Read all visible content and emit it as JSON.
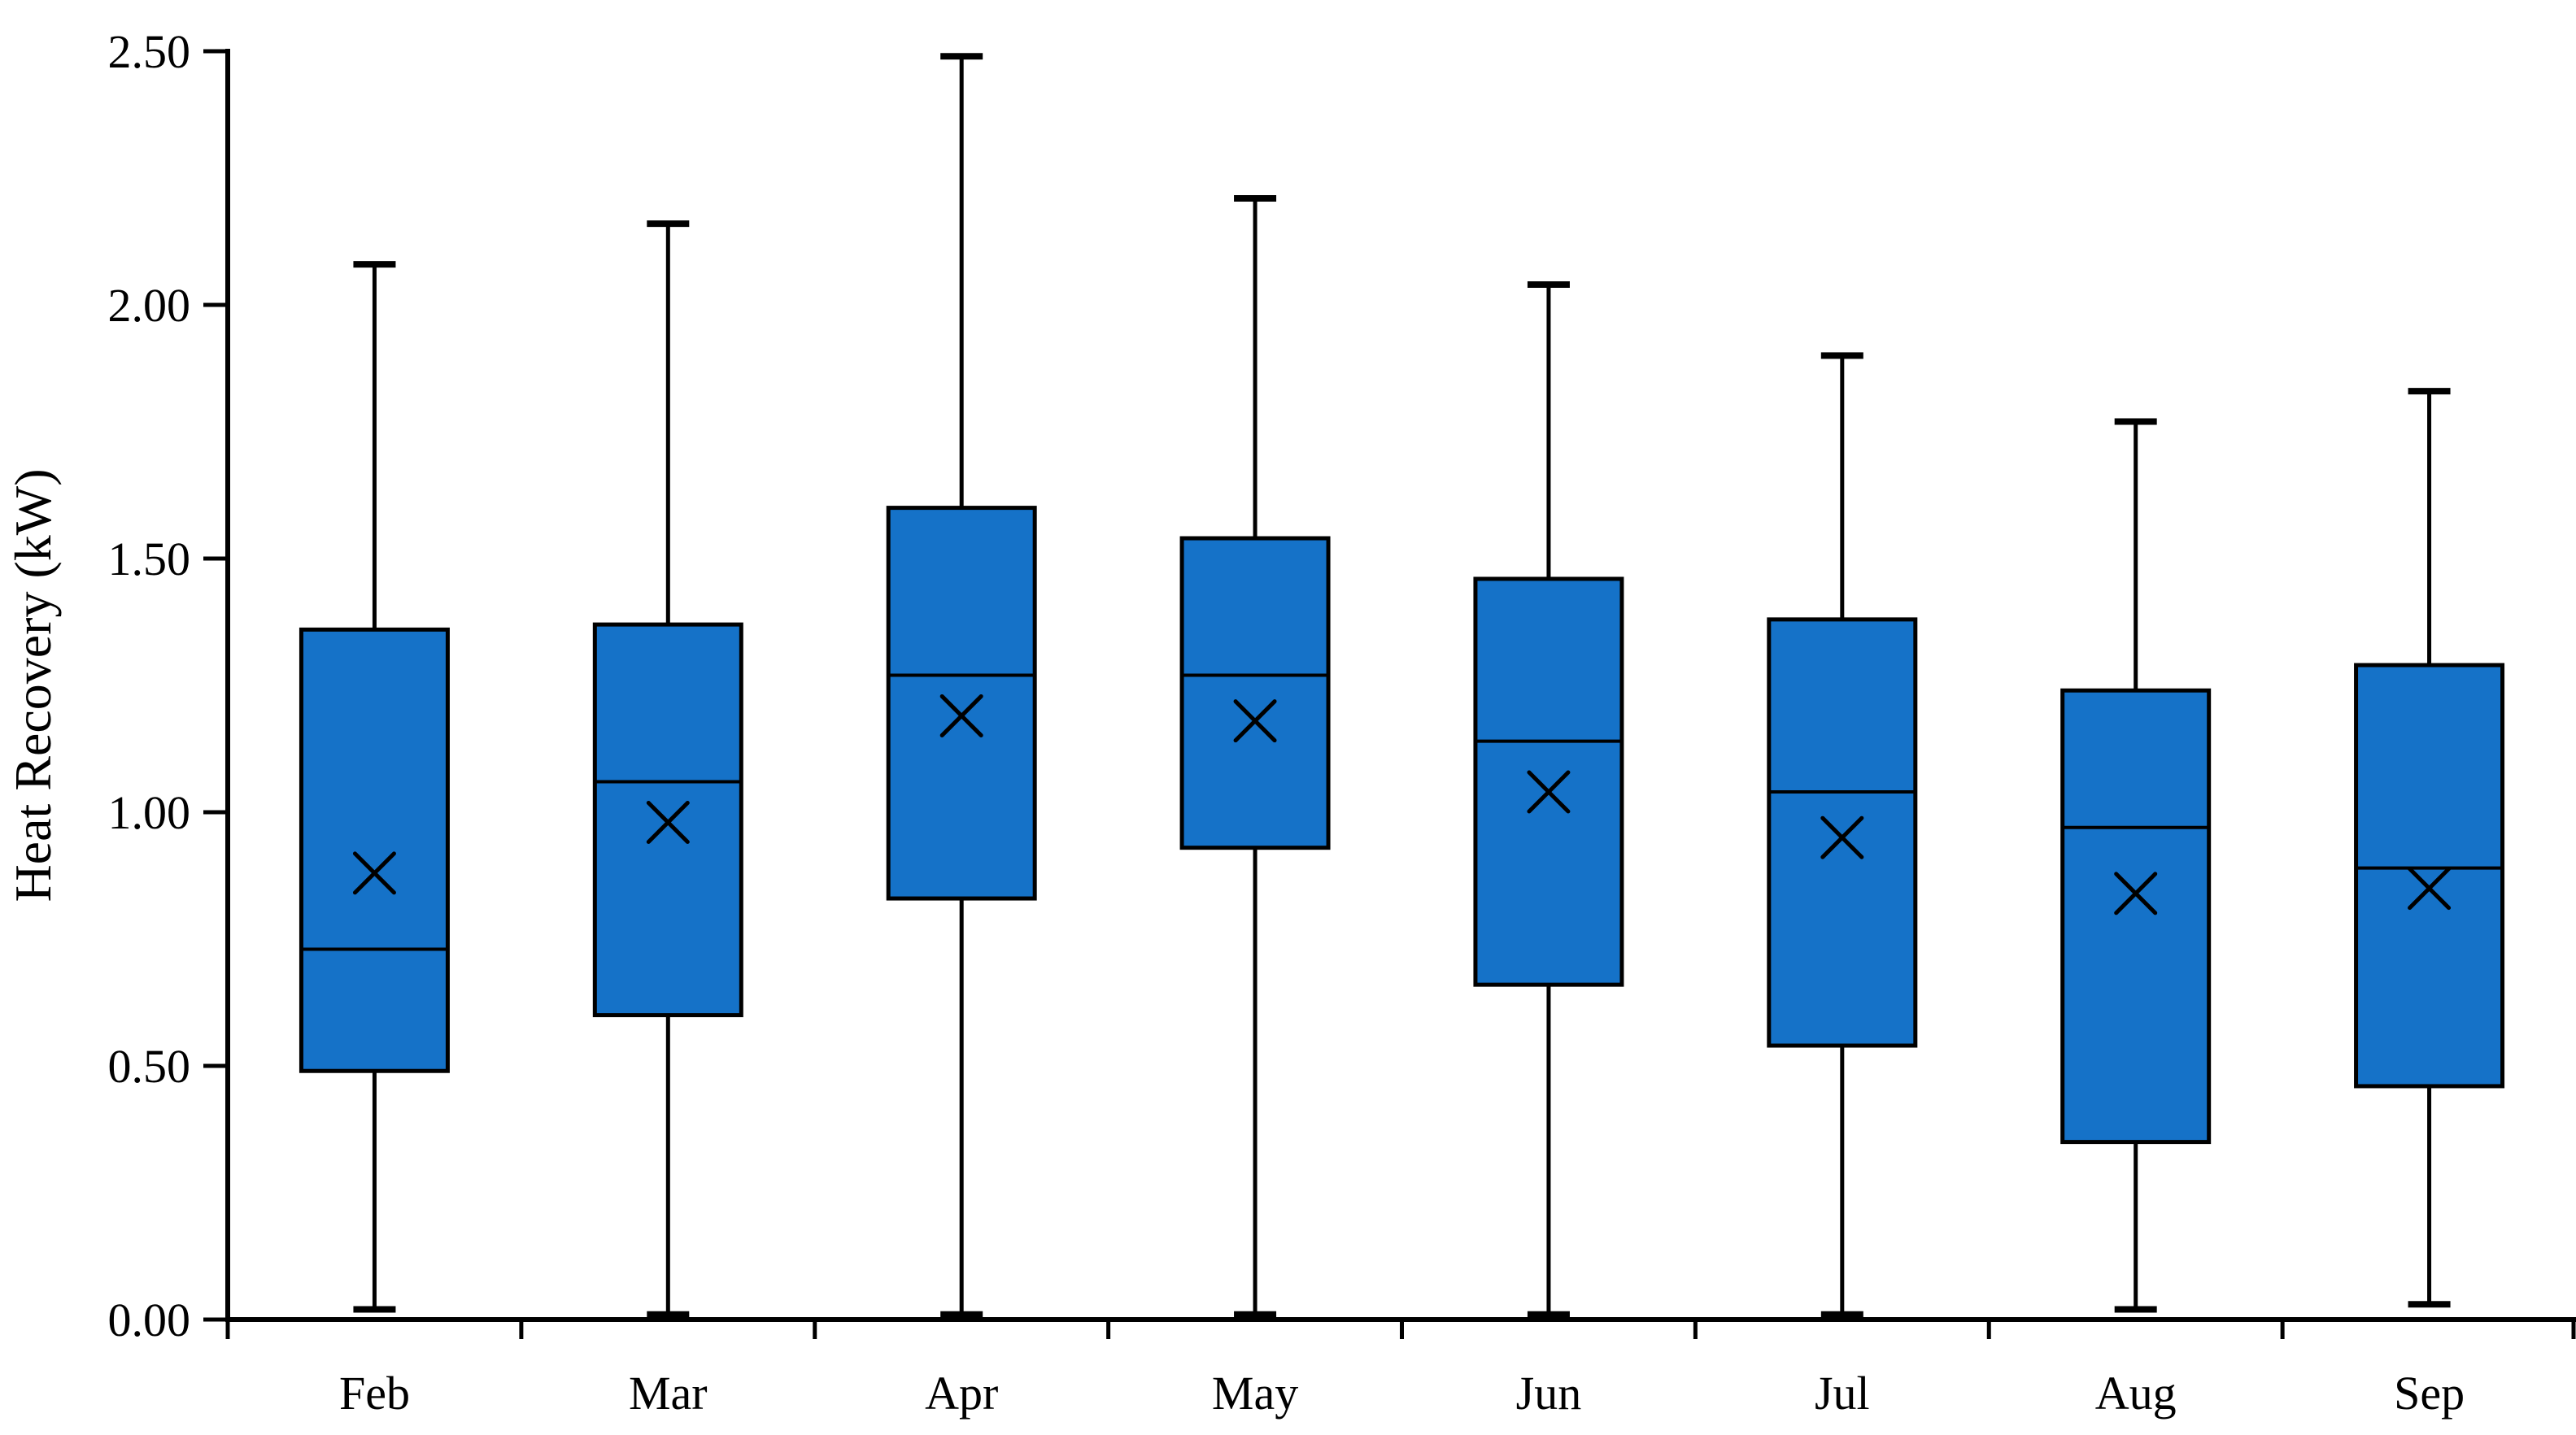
{
  "page": {
    "background": "#ffffff"
  },
  "chart_data": {
    "type": "box",
    "title": "",
    "xlabel": "",
    "ylabel": "Heat Recovery (kW)",
    "ylim": [
      0.0,
      2.5
    ],
    "ytick_values": [
      0.0,
      0.5,
      1.0,
      1.5,
      2.0,
      2.5
    ],
    "ytick_labels": [
      "0.00",
      "0.50",
      "1.00",
      "1.50",
      "2.00",
      "2.50"
    ],
    "grid": false,
    "legend_position": "none",
    "categories": [
      "Feb",
      "Mar",
      "Apr",
      "May",
      "Jun",
      "Jul",
      "Aug",
      "Sep"
    ],
    "series": [
      {
        "label": "Feb",
        "min": 0.02,
        "q1": 0.49,
        "median": 0.73,
        "mean": 0.88,
        "q3": 1.36,
        "max": 2.08
      },
      {
        "label": "Mar",
        "min": 0.01,
        "q1": 0.6,
        "median": 1.06,
        "mean": 0.98,
        "q3": 1.37,
        "max": 2.16
      },
      {
        "label": "Apr",
        "min": 0.01,
        "q1": 0.83,
        "median": 1.27,
        "mean": 1.19,
        "q3": 1.6,
        "max": 2.49
      },
      {
        "label": "May",
        "min": 0.01,
        "q1": 0.93,
        "median": 1.27,
        "mean": 1.18,
        "q3": 1.54,
        "max": 2.21
      },
      {
        "label": "Jun",
        "min": 0.01,
        "q1": 0.66,
        "median": 1.14,
        "mean": 1.04,
        "q3": 1.46,
        "max": 2.04
      },
      {
        "label": "Jul",
        "min": 0.01,
        "q1": 0.54,
        "median": 1.04,
        "mean": 0.95,
        "q3": 1.38,
        "max": 1.9
      },
      {
        "label": "Aug",
        "min": 0.02,
        "q1": 0.35,
        "median": 0.97,
        "mean": 0.84,
        "q3": 1.24,
        "max": 1.77
      },
      {
        "label": "Sep",
        "min": 0.03,
        "q1": 0.46,
        "median": 0.89,
        "mean": 0.85,
        "q3": 1.29,
        "max": 1.83
      }
    ],
    "colors": {
      "box_fill": "#1572C8",
      "line": "#000000",
      "background": "#ffffff"
    },
    "marker": {
      "mean_symbol": "x"
    }
  }
}
